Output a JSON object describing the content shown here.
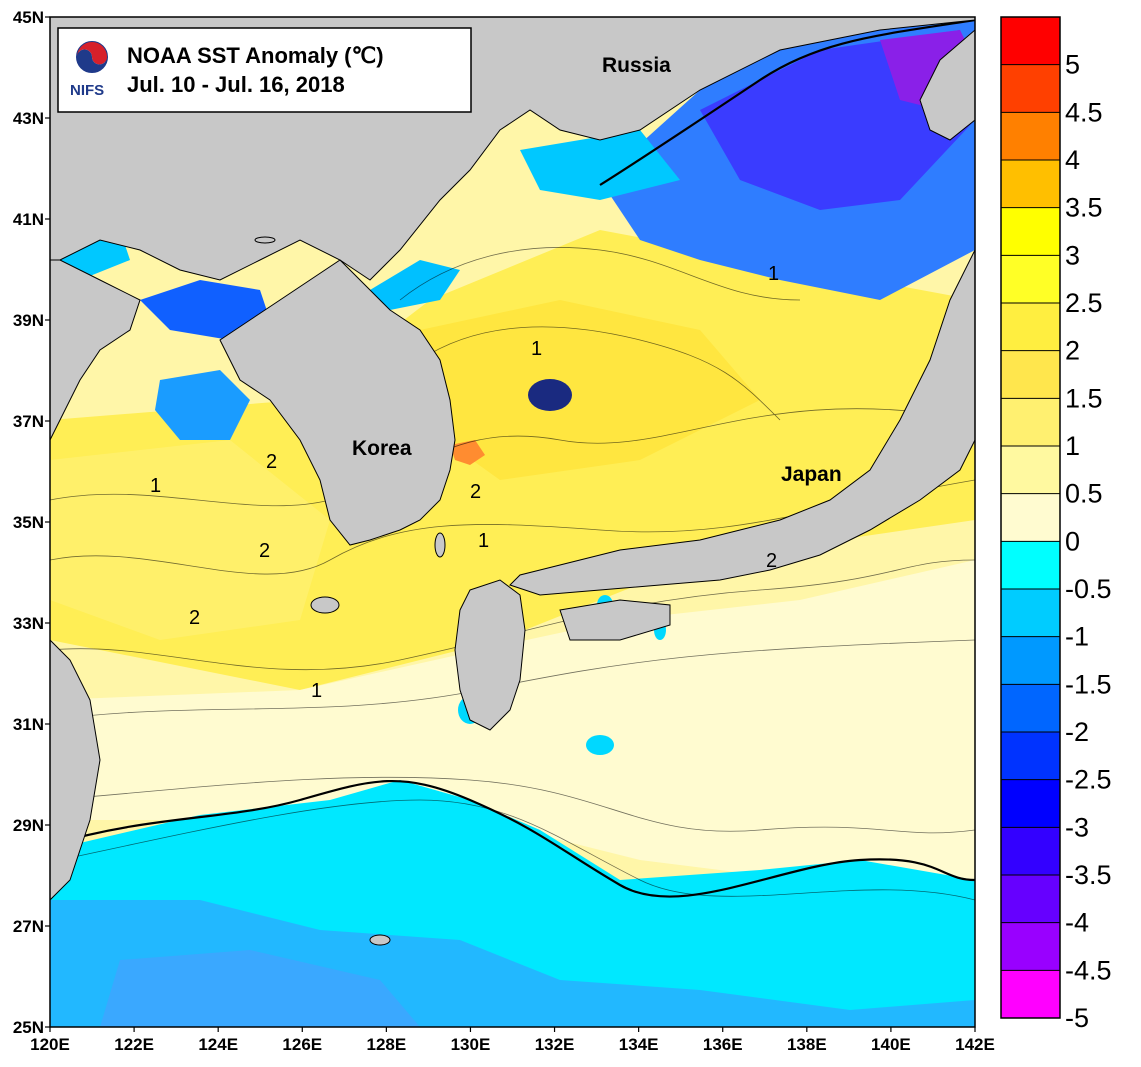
{
  "title": {
    "line1": "NOAA SST Anomaly (℃)",
    "line2": "Jul. 10 - Jul. 16, 2018",
    "logo_text": "NIFS"
  },
  "places": [
    {
      "name": "Russia"
    },
    {
      "name": "Korea"
    },
    {
      "name": "Japan"
    }
  ],
  "contour_labels": [
    "1",
    "2",
    "2",
    "2",
    "1",
    "2",
    "1",
    "2",
    "1",
    "1"
  ],
  "chart_data": {
    "type": "heatmap",
    "title": "NOAA SST Anomaly (℃)",
    "subtitle": "Jul. 10 - Jul. 16, 2018",
    "x_axis": {
      "range": [
        120,
        142
      ],
      "ticks": [
        "120E",
        "122E",
        "124E",
        "126E",
        "128E",
        "130E",
        "132E",
        "134E",
        "136E",
        "138E",
        "140E",
        "142E"
      ]
    },
    "y_axis": {
      "range": [
        25,
        45
      ],
      "ticks": [
        "45N",
        "43N",
        "41N",
        "39N",
        "37N",
        "35N",
        "33N",
        "31N",
        "29N",
        "27N",
        "25N"
      ]
    },
    "colorbar": {
      "levels": [
        5.5,
        5,
        4.5,
        4,
        3.5,
        3,
        2.5,
        2,
        1.5,
        1,
        0.5,
        0,
        -0.5,
        -1,
        -1.5,
        -2,
        -2.5,
        -3,
        -3.5,
        -4,
        -4.5,
        -5
      ],
      "labels": [
        "5",
        "4.5",
        "4",
        "3.5",
        "3",
        "2.5",
        "2",
        "1.5",
        "1",
        "0.5",
        "0",
        "-0.5",
        "-1",
        "-1.5",
        "-2",
        "-2.5",
        "-3",
        "-3.5",
        "-4",
        "-4.5",
        "-5"
      ],
      "colors": [
        "#ff0000",
        "#ff4000",
        "#ff8000",
        "#ffbf00",
        "#ffff00",
        "#ffff26",
        "#ffee40",
        "#ffe64d",
        "#fff070",
        "#fff9a0",
        "#fffbd0",
        "#00ffff",
        "#00ccff",
        "#0099ff",
        "#0066ff",
        "#0033ff",
        "#0000ff",
        "#3300ff",
        "#6600ff",
        "#9900ff",
        "#ff00ff"
      ]
    },
    "land_color": "#c8c8c8"
  }
}
